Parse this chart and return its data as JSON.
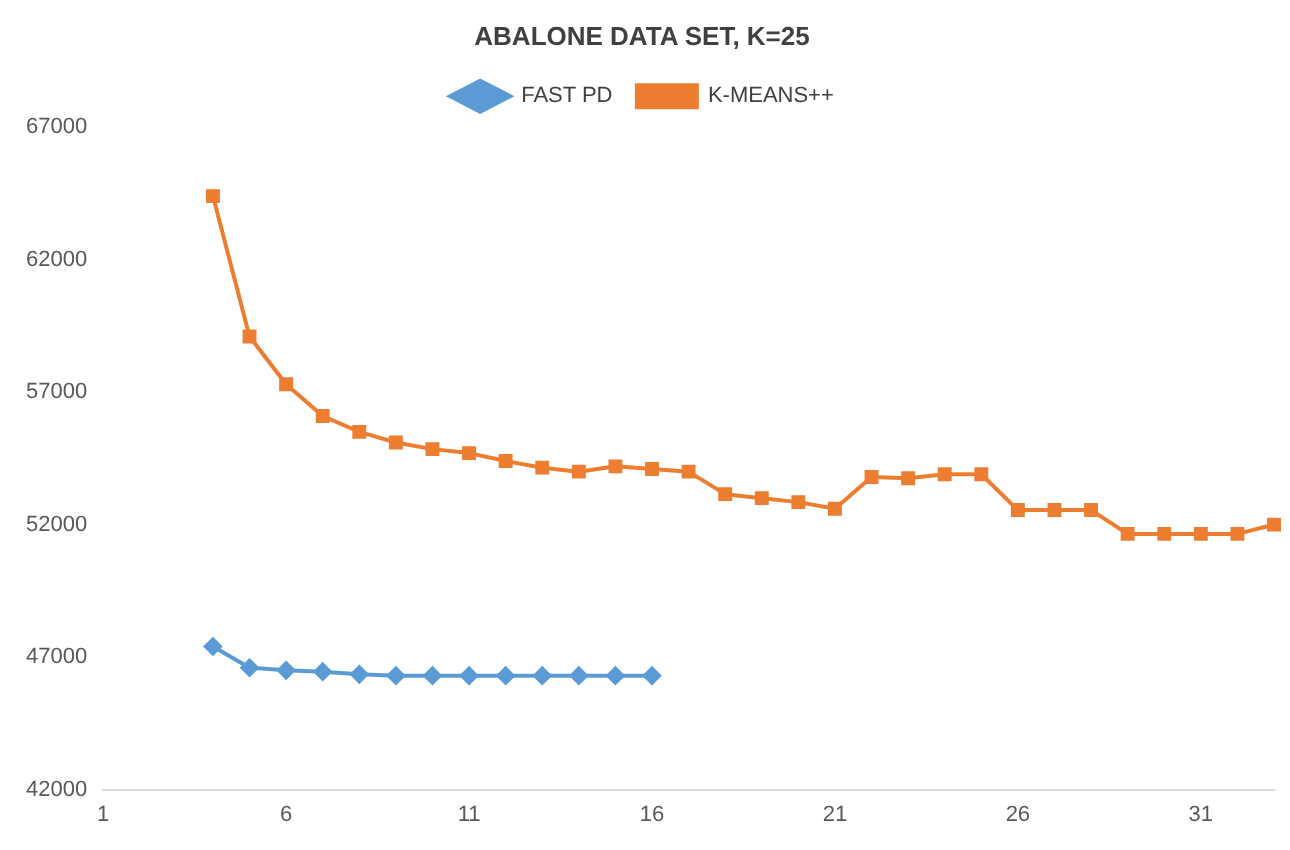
{
  "chart_data": {
    "type": "line",
    "title": "ABALONE DATA SET, K=25",
    "categories": [
      "1",
      null,
      null,
      null,
      null,
      "6",
      null,
      null,
      null,
      null,
      "11",
      null,
      null,
      null,
      null,
      "16",
      null,
      null,
      null,
      null,
      "21",
      null,
      null,
      null,
      null,
      "26",
      null,
      null,
      null,
      null,
      "31",
      null,
      null
    ],
    "series": [
      {
        "name": "FAST PD",
        "color": "#5b9bd5",
        "marker": "diamond",
        "values": [
          null,
          null,
          null,
          47400,
          46600,
          46500,
          46450,
          46350,
          46300,
          46300,
          46300,
          46300,
          46300,
          46300,
          46300,
          46300,
          null,
          null,
          null,
          null,
          null,
          null,
          null,
          null,
          null,
          null,
          null,
          null,
          null,
          null,
          null,
          null,
          null
        ]
      },
      {
        "name": "K-MEANS++",
        "color": "#ed7d31",
        "marker": "square",
        "values": [
          null,
          null,
          null,
          64400,
          59100,
          57300,
          56100,
          55500,
          55100,
          54850,
          54700,
          54400,
          54150,
          54000,
          54200,
          54100,
          54000,
          53150,
          53000,
          52850,
          52600,
          53800,
          53750,
          53900,
          53900,
          52550,
          52550,
          52550,
          51650,
          51650,
          51650,
          51650,
          52000
        ]
      }
    ],
    "ylim": [
      42000,
      67000
    ],
    "yticks": [
      42000,
      47000,
      52000,
      57000,
      62000,
      67000
    ],
    "grid": false,
    "legend": "top",
    "line_style": "solid"
  }
}
